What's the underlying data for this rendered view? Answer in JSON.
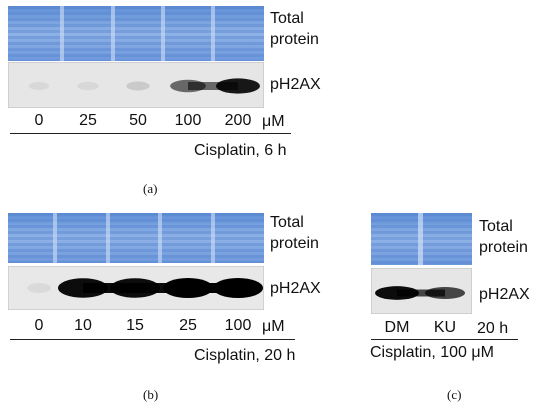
{
  "panels": [
    {
      "caption": "(a)",
      "labels": {
        "total_protein_1": "Total",
        "total_protein_2": "protein",
        "marker": "pH2AX"
      },
      "lanes": [
        "0",
        "25",
        "50",
        "100",
        "200"
      ],
      "unit": "μM",
      "treatment": "Cisplatin, 6 h",
      "band_intensity": [
        0.02,
        0.06,
        0.12,
        0.55,
        0.9
      ]
    },
    {
      "caption": "(b)",
      "labels": {
        "total_protein_1": "Total",
        "total_protein_2": "protein",
        "marker": "pH2AX"
      },
      "lanes": [
        "0",
        "10",
        "15",
        "25",
        "100"
      ],
      "unit": "μM",
      "treatment": "Cisplatin, 20 h",
      "band_intensity": [
        0.03,
        0.95,
        0.95,
        1.0,
        1.0
      ]
    },
    {
      "caption": "(c)",
      "labels": {
        "total_protein_1": "Total",
        "total_protein_2": "protein",
        "marker": "pH2AX"
      },
      "lanes": [
        "DM",
        "KU"
      ],
      "time": "20 h",
      "treatment": "Cisplatin, 100 μM",
      "band_intensity": [
        0.95,
        0.7
      ]
    }
  ]
}
